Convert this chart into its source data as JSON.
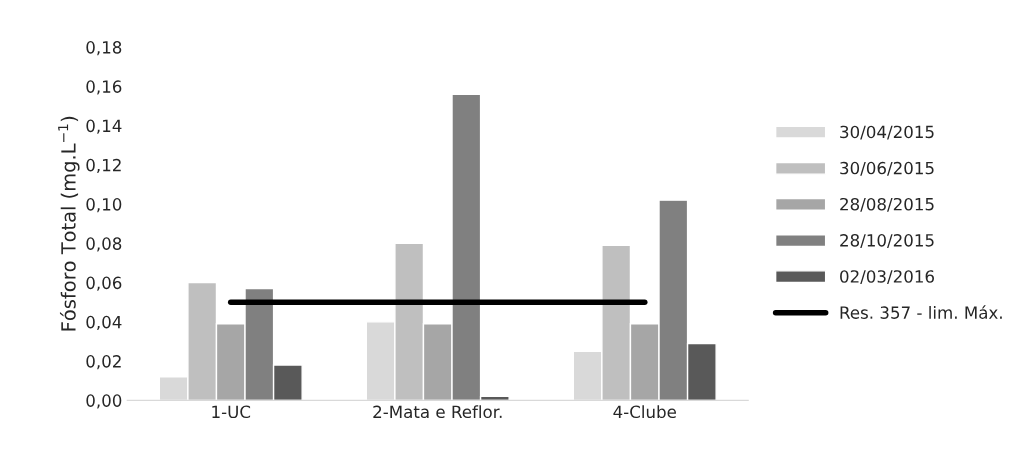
{
  "chart_data": {
    "type": "bar",
    "ylabel": "Fósforo Total (mg.L$^{−1}$)",
    "categories": [
      "1-UC",
      "2-Mata e Reflor.",
      "4-Clube"
    ],
    "series": [
      {
        "name": "30/04/2015",
        "color": "#d9d9d9",
        "values": [
          0.012,
          0.04,
          0.025
        ]
      },
      {
        "name": "30/06/2015",
        "color": "#bfbfbf",
        "values": [
          0.06,
          0.08,
          0.079
        ]
      },
      {
        "name": "28/08/2015",
        "color": "#a6a6a6",
        "values": [
          0.039,
          0.039,
          0.039
        ]
      },
      {
        "name": "28/10/2015",
        "color": "#808080",
        "values": [
          0.057,
          0.156,
          0.102
        ]
      },
      {
        "name": "02/03/2016",
        "color": "#595959",
        "values": [
          0.018,
          0.002,
          0.029
        ]
      },
      {
        "name": "Res. 357 - lim. Máx.",
        "color": "#000000",
        "type": "line",
        "values": [
          0.05,
          0.05,
          0.05
        ]
      }
    ],
    "ylim": [
      0,
      0.18
    ],
    "yticks": [
      {
        "value": 0,
        "label": "0,00"
      },
      {
        "value": 0.02,
        "label": "0,02"
      },
      {
        "value": 0.04,
        "label": "0,04"
      },
      {
        "value": 0.06,
        "label": "0,06"
      },
      {
        "value": 0.08,
        "label": "0,08"
      },
      {
        "value": 0.1,
        "label": "0,10"
      },
      {
        "value": 0.12,
        "label": "0,12"
      },
      {
        "value": 0.14,
        "label": "0,14"
      },
      {
        "value": 0.16,
        "label": "0,16"
      },
      {
        "value": 0.18,
        "label": "0,18"
      }
    ],
    "grid": false,
    "legend": "right"
  }
}
